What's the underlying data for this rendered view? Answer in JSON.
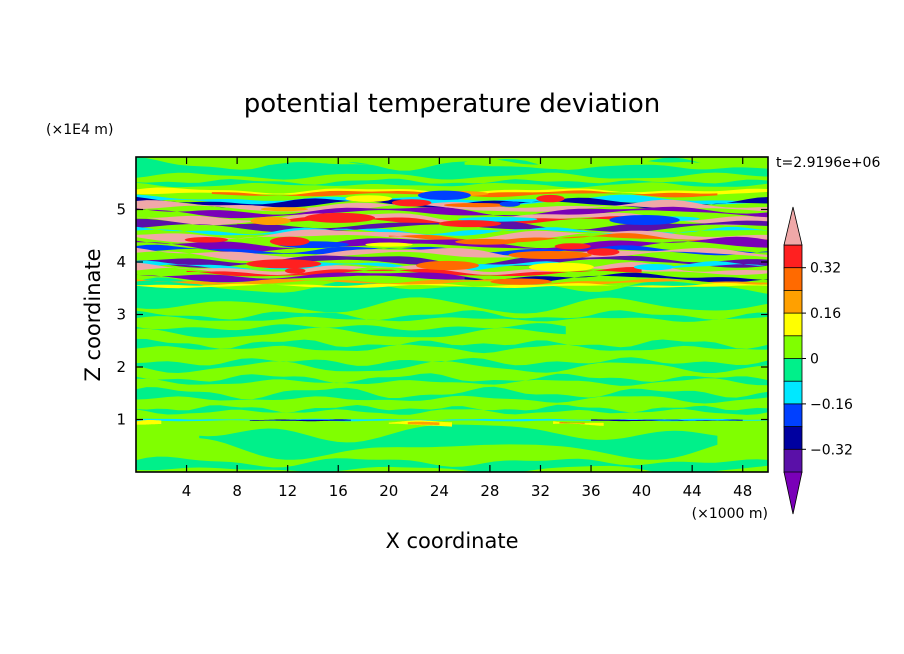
{
  "chart_data": {
    "type": "heatmap",
    "title": "potential temperature deviation",
    "xlabel": "X coordinate",
    "ylabel": "Z coordinate",
    "x_unit": "(×1000 m)",
    "y_unit": "(×1E4 m)",
    "time_label": "t=2.9196e+06",
    "xlim": [
      0,
      50
    ],
    "ylim": [
      0,
      6
    ],
    "x_ticks": [
      4,
      8,
      12,
      16,
      20,
      24,
      28,
      32,
      36,
      40,
      44,
      48
    ],
    "y_ticks": [
      1,
      2,
      3,
      4,
      5
    ],
    "grid": false,
    "colorbar": {
      "labels": [
        "0.32",
        "0.16",
        "0",
        "−0.16",
        "−0.32"
      ],
      "label_values": [
        0.32,
        0.16,
        0,
        -0.16,
        -0.32
      ],
      "levels": [
        -0.4,
        -0.32,
        -0.24,
        -0.16,
        -0.08,
        0,
        0.08,
        0.16,
        0.24,
        0.32,
        0.4
      ],
      "colors": [
        "#7a00b8",
        "#5a10a8",
        "#0000a0",
        "#0040ff",
        "#00e8ff",
        "#00f08a",
        "#80ff00",
        "#ffff00",
        "#ffa000",
        "#ff6a00",
        "#ff2020",
        "#f0a8a8"
      ],
      "extend": "both"
    },
    "bands": [
      {
        "z_range": [
          0.0,
          1.0
        ],
        "description": "near-neutral lower layer",
        "min": -0.08,
        "max": 0.08
      },
      {
        "z_range": [
          0.95,
          1.0
        ],
        "description": "thin perturbation layer near z=1",
        "min": -0.32,
        "max": 0.32
      },
      {
        "z_range": [
          1.0,
          3.5
        ],
        "description": "near-neutral middle layer",
        "min": -0.08,
        "max": 0.08
      },
      {
        "z_range": [
          3.5,
          5.4
        ],
        "description": "strong alternating warm/cold layers",
        "min": -0.4,
        "max": 0.4
      },
      {
        "z_range": [
          5.4,
          6.0
        ],
        "description": "near-neutral upper layer",
        "min": -0.08,
        "max": 0.08
      }
    ]
  }
}
